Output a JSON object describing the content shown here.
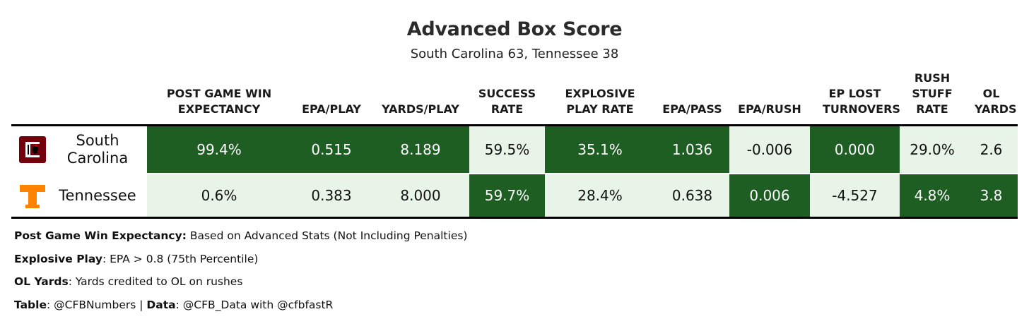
{
  "title": "Advanced Box Score",
  "subtitle": "South Carolina 63, Tennessee 38",
  "colors": {
    "dark_fill": "#1e5e23",
    "light_fill": "#e7f4e7",
    "sc_garnet": "#73000a",
    "tn_orange": "#ff8200"
  },
  "chart_data": {
    "type": "table",
    "columns": [
      {
        "key": "team",
        "label": ""
      },
      {
        "key": "win_exp",
        "label": "POST GAME WIN EXPECTANCY"
      },
      {
        "key": "epa_play",
        "label": "EPA/PLAY"
      },
      {
        "key": "yards_play",
        "label": "YARDS/PLAY"
      },
      {
        "key": "success_rate",
        "label": "SUCCESS RATE"
      },
      {
        "key": "explosive_rate",
        "label": "EXPLOSIVE PLAY RATE"
      },
      {
        "key": "epa_pass",
        "label": "EPA/PASS"
      },
      {
        "key": "epa_rush",
        "label": "EPA/RUSH"
      },
      {
        "key": "ep_lost_to",
        "label": "EP LOST TURNOVERS"
      },
      {
        "key": "rush_stuff",
        "label": "RUSH STUFF RATE"
      },
      {
        "key": "ol_yards",
        "label": "OL YARDS"
      }
    ],
    "rows": [
      {
        "team": "South Carolina",
        "logo_icon": "gamecock-block-c-icon",
        "cells": [
          {
            "value": "99.4%",
            "shade": "dark"
          },
          {
            "value": "0.515",
            "shade": "dark"
          },
          {
            "value": "8.189",
            "shade": "dark"
          },
          {
            "value": "59.5%",
            "shade": "light"
          },
          {
            "value": "35.1%",
            "shade": "dark"
          },
          {
            "value": "1.036",
            "shade": "dark"
          },
          {
            "value": "-0.006",
            "shade": "light"
          },
          {
            "value": "0.000",
            "shade": "dark"
          },
          {
            "value": "29.0%",
            "shade": "light"
          },
          {
            "value": "2.6",
            "shade": "light"
          }
        ]
      },
      {
        "team": "Tennessee",
        "logo_icon": "power-t-icon",
        "cells": [
          {
            "value": "0.6%",
            "shade": "light"
          },
          {
            "value": "0.383",
            "shade": "light"
          },
          {
            "value": "8.000",
            "shade": "light"
          },
          {
            "value": "59.7%",
            "shade": "dark"
          },
          {
            "value": "28.4%",
            "shade": "light"
          },
          {
            "value": "0.638",
            "shade": "light"
          },
          {
            "value": "0.006",
            "shade": "dark"
          },
          {
            "value": "-4.527",
            "shade": "light"
          },
          {
            "value": "4.8%",
            "shade": "dark"
          },
          {
            "value": "3.8",
            "shade": "dark"
          }
        ]
      }
    ]
  },
  "notes": [
    {
      "bold": "Post Game Win Expectancy:",
      "text": " Based on Advanced Stats (Not Including Penalties)"
    },
    {
      "bold": "Explosive Play",
      "text": ": EPA > 0.8 (75th Percentile)"
    },
    {
      "bold": "OL Yards",
      "text": ": Yards credited to OL on rushes"
    },
    {
      "bold": "Table",
      "text": ": @CFBNumbers | ",
      "bold2": "Data",
      "text2": ": @CFB_Data with @cfbfastR"
    }
  ]
}
